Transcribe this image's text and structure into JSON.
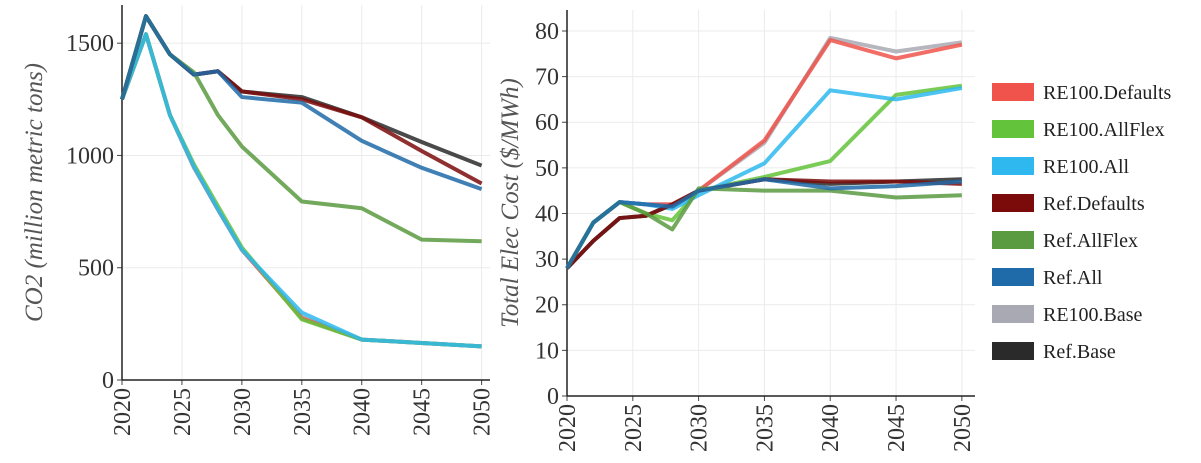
{
  "chart_data": [
    {
      "type": "line",
      "y_label": "CO2 (million metric tons)",
      "x": [
        2020,
        2022,
        2024,
        2026,
        2028,
        2030,
        2035,
        2040,
        2045,
        2050
      ],
      "xlim": [
        2020,
        2050.7
      ],
      "xticks": [
        2020,
        2025,
        2030,
        2035,
        2040,
        2045,
        2050
      ],
      "ylim": [
        0,
        1670
      ],
      "yticks": [
        0,
        500,
        1000,
        1500
      ],
      "grid": true,
      "series": [
        {
          "name": "RE100.Defaults",
          "color": "#f0534b",
          "values": [
            1250,
            1540,
            1180,
            950,
            760,
            580,
            275,
            180,
            165,
            150
          ]
        },
        {
          "name": "RE100.AllFlex",
          "color": "#63c33a",
          "values": [
            1250,
            1540,
            1180,
            960,
            775,
            590,
            270,
            180,
            165,
            150
          ]
        },
        {
          "name": "RE100.All",
          "color": "#2eb8ef",
          "values": [
            1250,
            1540,
            1180,
            950,
            760,
            580,
            300,
            180,
            165,
            150
          ]
        },
        {
          "name": "Ref.Defaults",
          "color": "#7b0a0a",
          "values": [
            1250,
            1620,
            1450,
            1360,
            1375,
            1285,
            1250,
            1170,
            1020,
            875
          ]
        },
        {
          "name": "Ref.AllFlex",
          "color": "#5a9a40",
          "values": [
            1250,
            1620,
            1450,
            1370,
            1180,
            1040,
            795,
            765,
            625,
            618
          ]
        },
        {
          "name": "Ref.All",
          "color": "#1f6aa8",
          "values": [
            1250,
            1620,
            1450,
            1360,
            1375,
            1260,
            1235,
            1065,
            945,
            850
          ]
        },
        {
          "name": "RE100.Base",
          "color": "#a8a9b3",
          "values": [
            1250,
            1540,
            1180,
            945,
            760,
            580,
            280,
            180,
            165,
            150
          ]
        },
        {
          "name": "Ref.Base",
          "color": "#2a2a2a",
          "values": [
            1250,
            1620,
            1450,
            1360,
            1375,
            1285,
            1260,
            1170,
            1060,
            955
          ]
        }
      ]
    },
    {
      "type": "line",
      "y_label": "Total Elec Cost ($/MWh)",
      "x": [
        2020,
        2022,
        2024,
        2026,
        2028,
        2030,
        2035,
        2040,
        2045,
        2050
      ],
      "xlim": [
        2020,
        2051
      ],
      "xticks": [
        2020,
        2025,
        2030,
        2035,
        2040,
        2045,
        2050
      ],
      "ylim": [
        0,
        84.6
      ],
      "yticks": [
        0,
        10,
        20,
        30,
        40,
        50,
        60,
        70,
        80
      ],
      "grid": true,
      "series": [
        {
          "color": "#f0534b",
          "values": [
            28,
            38,
            42.5,
            42,
            42,
            45,
            56,
            78,
            74,
            77
          ]
        },
        {
          "color": "#63c33a",
          "values": [
            28,
            38,
            42.5,
            40,
            38.5,
            45,
            48,
            51.5,
            66,
            68
          ]
        },
        {
          "color": "#2eb8ef",
          "values": [
            28,
            38,
            42.5,
            42,
            41,
            44,
            51,
            67,
            65,
            67.5
          ]
        },
        {
          "color": "#7b0a0a",
          "values": [
            28,
            34,
            39,
            39.5,
            42,
            45,
            47.5,
            47,
            47,
            46.5
          ]
        },
        {
          "color": "#5a9a40",
          "values": [
            28,
            38,
            42.5,
            40,
            36.5,
            45.5,
            45,
            45,
            43.5,
            44
          ]
        },
        {
          "color": "#1f6aa8",
          "values": [
            28,
            38,
            42.5,
            42,
            41.5,
            45,
            47.5,
            45.5,
            46,
            47
          ]
        },
        {
          "color": "#a8a9b3",
          "values": [
            28,
            38,
            42.5,
            42,
            42,
            45,
            55.5,
            78.5,
            75.5,
            77.5
          ]
        },
        {
          "color": "#2a2a2a",
          "values": [
            28,
            34,
            39,
            39.5,
            42,
            45,
            47.5,
            46.5,
            47,
            47.5
          ]
        }
      ]
    }
  ]
}
